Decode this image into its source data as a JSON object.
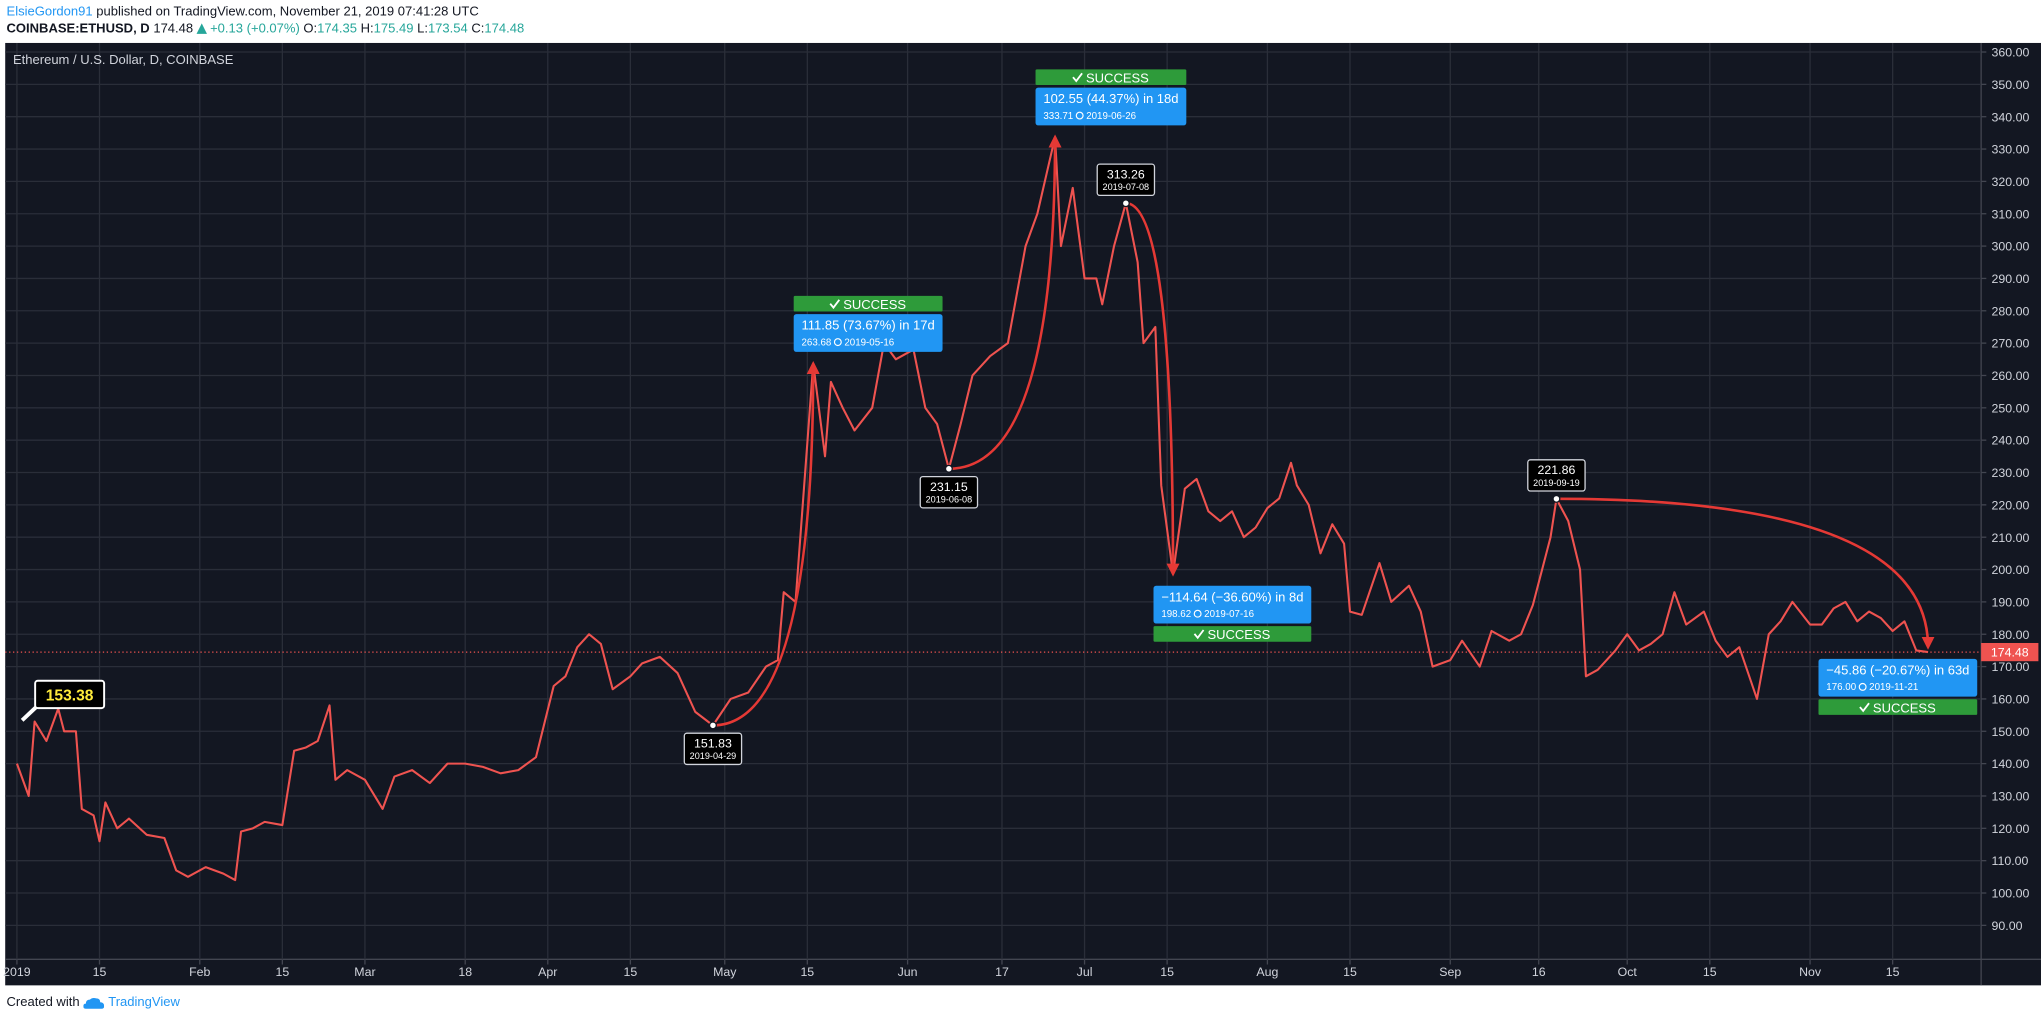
{
  "header": {
    "author": "ElsieGordon91",
    "published": "published on TradingView.com, November 21, 2019 07:41:28 UTC",
    "symbol": "COINBASE:ETHUSD, D",
    "price": "174.48",
    "change": "+0.13 (+0.07%)",
    "ohlc": [
      {
        "label": "O:",
        "value": "174.35"
      },
      {
        "label": "H:",
        "value": "175.49"
      },
      {
        "label": "L:",
        "value": "173.54"
      },
      {
        "label": "C:",
        "value": "174.48"
      }
    ]
  },
  "chart_data": {
    "type": "line",
    "title": "Ethereum / U.S. Dollar, D, COINBASE",
    "x": [
      "2019-01-01",
      "2019-01-03",
      "2019-01-04",
      "2019-01-06",
      "2019-01-08",
      "2019-01-09",
      "2019-01-11",
      "2019-01-12",
      "2019-01-14",
      "2019-01-15",
      "2019-01-16",
      "2019-01-18",
      "2019-01-20",
      "2019-01-23",
      "2019-01-26",
      "2019-01-28",
      "2019-01-30",
      "2019-02-02",
      "2019-02-05",
      "2019-02-07",
      "2019-02-08",
      "2019-02-10",
      "2019-02-12",
      "2019-02-15",
      "2019-02-17",
      "2019-02-19",
      "2019-02-21",
      "2019-02-23",
      "2019-02-24",
      "2019-02-26",
      "2019-03-01",
      "2019-03-04",
      "2019-03-06",
      "2019-03-09",
      "2019-03-12",
      "2019-03-15",
      "2019-03-18",
      "2019-03-21",
      "2019-03-24",
      "2019-03-27",
      "2019-03-30",
      "2019-04-02",
      "2019-04-04",
      "2019-04-06",
      "2019-04-08",
      "2019-04-10",
      "2019-04-12",
      "2019-04-15",
      "2019-04-17",
      "2019-04-20",
      "2019-04-23",
      "2019-04-26",
      "2019-04-29",
      "2019-05-02",
      "2019-05-05",
      "2019-05-08",
      "2019-05-10",
      "2019-05-11",
      "2019-05-13",
      "2019-05-16",
      "2019-05-18",
      "2019-05-19",
      "2019-05-21",
      "2019-05-23",
      "2019-05-26",
      "2019-05-28",
      "2019-05-30",
      "2019-06-02",
      "2019-06-04",
      "2019-06-06",
      "2019-06-08",
      "2019-06-10",
      "2019-06-12",
      "2019-06-15",
      "2019-06-18",
      "2019-06-21",
      "2019-06-23",
      "2019-06-26",
      "2019-06-27",
      "2019-06-29",
      "2019-07-01",
      "2019-07-03",
      "2019-07-04",
      "2019-07-06",
      "2019-07-08",
      "2019-07-10",
      "2019-07-11",
      "2019-07-13",
      "2019-07-14",
      "2019-07-16",
      "2019-07-18",
      "2019-07-20",
      "2019-07-22",
      "2019-07-24",
      "2019-07-26",
      "2019-07-28",
      "2019-07-30",
      "2019-08-01",
      "2019-08-03",
      "2019-08-05",
      "2019-08-06",
      "2019-08-08",
      "2019-08-10",
      "2019-08-12",
      "2019-08-14",
      "2019-08-15",
      "2019-08-17",
      "2019-08-20",
      "2019-08-22",
      "2019-08-25",
      "2019-08-27",
      "2019-08-29",
      "2019-09-01",
      "2019-09-03",
      "2019-09-06",
      "2019-09-08",
      "2019-09-11",
      "2019-09-13",
      "2019-09-15",
      "2019-09-18",
      "2019-09-19",
      "2019-09-21",
      "2019-09-23",
      "2019-09-24",
      "2019-09-26",
      "2019-09-29",
      "2019-10-01",
      "2019-10-03",
      "2019-10-05",
      "2019-10-07",
      "2019-10-09",
      "2019-10-11",
      "2019-10-14",
      "2019-10-16",
      "2019-10-18",
      "2019-10-20",
      "2019-10-23",
      "2019-10-25",
      "2019-10-27",
      "2019-10-29",
      "2019-11-01",
      "2019-11-03",
      "2019-11-05",
      "2019-11-07",
      "2019-11-09",
      "2019-11-11",
      "2019-11-13",
      "2019-11-15",
      "2019-11-17",
      "2019-11-19",
      "2019-11-21"
    ],
    "series": [
      {
        "color": "#ef5350",
        "values": [
          140,
          130,
          153,
          147,
          157,
          150,
          150,
          126,
          124,
          116,
          128,
          120,
          123,
          118,
          117,
          107,
          105,
          108,
          106,
          104,
          119,
          120,
          122,
          121,
          144,
          145,
          147,
          158,
          135,
          138,
          135,
          126,
          136,
          138,
          134,
          140,
          140,
          139,
          137,
          138,
          142,
          164,
          167,
          176,
          180,
          177,
          163,
          167,
          171,
          173,
          168,
          156,
          151.83,
          160,
          162,
          170,
          172,
          193,
          190,
          263.68,
          235,
          258,
          250,
          243,
          250,
          270,
          265,
          268,
          250,
          245,
          231.15,
          245,
          260,
          266,
          270,
          300,
          310,
          333.71,
          300,
          318,
          290,
          290,
          282,
          300,
          313.26,
          295,
          270,
          275,
          226,
          198.62,
          225,
          228,
          218,
          215,
          218,
          210,
          213,
          219,
          222,
          233,
          226,
          220,
          205,
          214,
          208,
          187,
          186,
          202,
          190,
          195,
          187,
          170,
          172,
          178,
          170,
          181,
          178,
          180,
          189,
          210,
          221.86,
          215,
          200,
          167,
          169,
          175,
          180,
          175,
          177,
          180,
          193,
          183,
          187,
          178,
          173,
          176,
          160,
          180,
          184,
          190,
          183,
          183,
          188,
          190,
          184,
          187,
          185,
          181,
          184,
          175,
          174.48
        ]
      }
    ],
    "xlim": [
      "2019-01-01",
      "2019-11-30"
    ],
    "xticks": [
      {
        "value": "2019-01-01",
        "label": "2019"
      },
      {
        "value": "2019-01-15",
        "label": "15"
      },
      {
        "value": "2019-02-01",
        "label": "Feb"
      },
      {
        "value": "2019-02-15",
        "label": "15"
      },
      {
        "value": "2019-03-01",
        "label": "Mar"
      },
      {
        "value": "2019-03-18",
        "label": "18"
      },
      {
        "value": "2019-04-01",
        "label": "Apr"
      },
      {
        "value": "2019-04-15",
        "label": "15"
      },
      {
        "value": "2019-05-01",
        "label": "May"
      },
      {
        "value": "2019-05-15",
        "label": "15"
      },
      {
        "value": "2019-06-01",
        "label": "Jun"
      },
      {
        "value": "2019-06-17",
        "label": "17"
      },
      {
        "value": "2019-07-01",
        "label": "Jul"
      },
      {
        "value": "2019-07-15",
        "label": "15"
      },
      {
        "value": "2019-08-01",
        "label": "Aug"
      },
      {
        "value": "2019-08-15",
        "label": "15"
      },
      {
        "value": "2019-09-01",
        "label": "Sep"
      },
      {
        "value": "2019-09-16",
        "label": "16"
      },
      {
        "value": "2019-10-01",
        "label": "Oct"
      },
      {
        "value": "2019-10-15",
        "label": "15"
      },
      {
        "value": "2019-11-01",
        "label": "Nov"
      },
      {
        "value": "2019-11-15",
        "label": "15"
      }
    ],
    "ylim": [
      79.5,
      362.8
    ],
    "yticks": [
      {
        "value": 90,
        "label": "90.00"
      },
      {
        "value": 100,
        "label": "100.00"
      },
      {
        "value": 110,
        "label": "110.00"
      },
      {
        "value": 120,
        "label": "120.00"
      },
      {
        "value": 130,
        "label": "130.00"
      },
      {
        "value": 140,
        "label": "140.00"
      },
      {
        "value": 150,
        "label": "150.00"
      },
      {
        "value": 160,
        "label": "160.00"
      },
      {
        "value": 170,
        "label": "170.00"
      },
      {
        "value": 180,
        "label": "180.00"
      },
      {
        "value": 190,
        "label": "190.00"
      },
      {
        "value": 200,
        "label": "200.00"
      },
      {
        "value": 210,
        "label": "210.00"
      },
      {
        "value": 220,
        "label": "220.00"
      },
      {
        "value": 230,
        "label": "230.00"
      },
      {
        "value": 240,
        "label": "240.00"
      },
      {
        "value": 250,
        "label": "250.00"
      },
      {
        "value": 260,
        "label": "260.00"
      },
      {
        "value": 270,
        "label": "270.00"
      },
      {
        "value": 280,
        "label": "280.00"
      },
      {
        "value": 290,
        "label": "290.00"
      },
      {
        "value": 300,
        "label": "300.00"
      },
      {
        "value": 310,
        "label": "310.00"
      },
      {
        "value": 320,
        "label": "320.00"
      },
      {
        "value": 330,
        "label": "330.00"
      },
      {
        "value": 340,
        "label": "340.00"
      },
      {
        "value": 350,
        "label": "350.00"
      },
      {
        "value": 360,
        "label": "360.00"
      }
    ],
    "grid": true,
    "last_price": 174.48,
    "price_label": 153.38,
    "points": [
      {
        "x": "2019-04-29",
        "value": 151.83
      },
      {
        "x": "2019-06-08",
        "value": 231.15
      },
      {
        "x": "2019-07-08",
        "value": 313.26
      },
      {
        "x": "2019-09-19",
        "value": 221.86
      }
    ],
    "measures": [
      {
        "change": "111.85 (73.67%) in 17d",
        "end": 263.68,
        "date": "2019-05-16",
        "status": "SUCCESS"
      },
      {
        "change": "102.55 (44.37%) in 18d",
        "end": 333.71,
        "date": "2019-06-26",
        "status": "SUCCESS"
      },
      {
        "change": "−114.64 (−36.60%) in 8d",
        "end": 198.62,
        "date": "2019-07-16",
        "status": "SUCCESS"
      },
      {
        "change": "−45.86 (−20.67%) in 63d",
        "end": {
          "value": 176,
          "label": "176.00"
        },
        "date": "2019-11-21",
        "status": "SUCCESS"
      }
    ]
  },
  "footer": {
    "created": "Created with",
    "brand": "TradingView"
  }
}
